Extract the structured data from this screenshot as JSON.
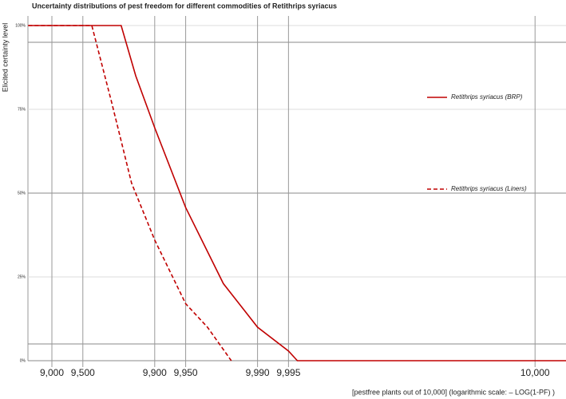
{
  "chart_data": {
    "type": "line",
    "title": "Uncertainty distributions of pest freedom for different commodities of Retithrips syriacus",
    "ylabel": "Elicited certainty level",
    "xlabel": "[pestfree plants out of 10,000] (logarithmic scale: – LOG(1-PF) )",
    "xscale": "neglog-complement",
    "xtotal": 10000,
    "xlim": [
      8290,
      9999.99
    ],
    "xticks": [
      {
        "value": 9000,
        "label": "9,000"
      },
      {
        "value": 9500,
        "label": "9,500"
      },
      {
        "value": 9900,
        "label": "9,900"
      },
      {
        "value": 9950,
        "label": "9,950"
      },
      {
        "value": 9990,
        "label": "9,990"
      },
      {
        "value": 9995,
        "label": "9,995"
      },
      {
        "value": 9999.98,
        "label": "10,000"
      }
    ],
    "ylim": [
      0,
      100
    ],
    "yticks": [
      {
        "value": 0,
        "label": "0%"
      },
      {
        "value": 25,
        "label": "25%"
      },
      {
        "value": 50,
        "label": "50%"
      },
      {
        "value": 75,
        "label": "75%"
      },
      {
        "value": 100,
        "label": "100%"
      }
    ],
    "hlines": [
      5,
      95
    ],
    "grid": true,
    "series": [
      {
        "name": "Retithrips syriacus (BRP)",
        "color": "#c00000",
        "dash": "solid",
        "x": [
          8300,
          9788,
          9847,
          9900,
          9950,
          9978.5,
          9990,
          9995,
          9995.9,
          9999.99
        ],
        "values": [
          100,
          100,
          85,
          69.5,
          45.7,
          23,
          10,
          2.9,
          0,
          0
        ]
      },
      {
        "name": "Retithrips syriacus (Liners)",
        "color": "#c00000",
        "dash": "dashed",
        "x": [
          8300,
          9591,
          9738,
          9832,
          9900,
          9950,
          9969.3,
          9982
        ],
        "values": [
          100,
          100,
          77,
          53,
          36,
          17,
          10,
          0
        ]
      }
    ]
  }
}
